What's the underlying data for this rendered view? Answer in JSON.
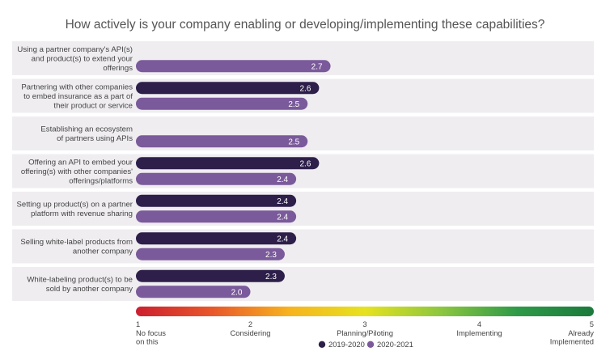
{
  "chart_data": {
    "type": "bar",
    "orientation": "horizontal",
    "title": "How actively is your company enabling or developing/implementing these capabilities?",
    "categories": [
      [
        "Using a partner company's API(s)",
        "and product(s) to extend your",
        "offerings"
      ],
      [
        "Partnering with other companies",
        "to embed insurance as a part of",
        "their product or service"
      ],
      [
        "Establishing an ecosystem",
        "of partners using APIs"
      ],
      [
        "Offering an API to embed your",
        "offering(s) with other companies'",
        "offerings/platforms"
      ],
      [
        "Setting up product(s) on a partner",
        "platform with revenue sharing"
      ],
      [
        "Selling white-label products from",
        "another company"
      ],
      [
        "White-labeling product(s) to be",
        "sold by another company"
      ]
    ],
    "series": [
      {
        "name": "2019-2020",
        "color": "#2d1f4a",
        "values": [
          null,
          2.6,
          null,
          2.6,
          2.4,
          2.4,
          2.3
        ]
      },
      {
        "name": "2020-2021",
        "color": "#7a5a9a",
        "values": [
          2.7,
          2.5,
          2.5,
          2.4,
          2.4,
          2.3,
          2.0
        ]
      }
    ],
    "xlim": [
      1,
      5
    ],
    "ticks": [
      {
        "value": 1,
        "label": [
          "No focus",
          "on this"
        ]
      },
      {
        "value": 2,
        "label": [
          "Considering"
        ]
      },
      {
        "value": 3,
        "label": [
          "Planning/Piloting"
        ]
      },
      {
        "value": 4,
        "label": [
          "Implementing"
        ]
      },
      {
        "value": 5,
        "label": [
          "Already",
          "Implemented"
        ]
      }
    ],
    "color_scale": [
      "#cc1f2f",
      "#e8572a",
      "#f7b21e",
      "#e6e21f",
      "#8cc63f",
      "#2e9a48",
      "#1c7a3c"
    ],
    "band_color": "#efedf0",
    "legend_position": "bottom-center",
    "grid": false
  }
}
